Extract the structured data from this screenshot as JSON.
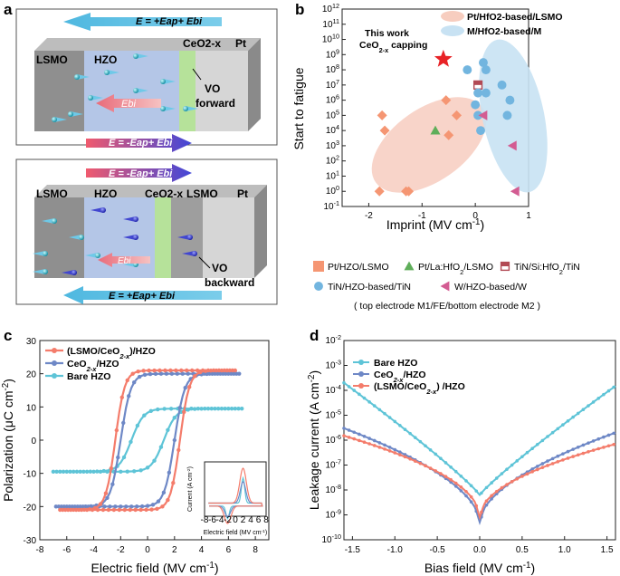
{
  "panels": {
    "a": {
      "letter": "a",
      "top": {
        "eq_top": "E = +Eap+ Ebi",
        "eq_bottom": "E = -Eap+ Ebi",
        "layer_lsmo": "LSMO",
        "layer_hzo": "HZO",
        "layer_ceo": "CeO2-x",
        "layer_pt": "Pt",
        "ebi": "Ebi",
        "vo": "VO",
        "vo_dir": "forward"
      },
      "bottom": {
        "eq_top": "E = -Eap+ Ebi",
        "eq_bottom": "E = +Eap+ Ebi",
        "layer_lsmo": "LSMO",
        "layer_hzo": "HZO",
        "layer_ceo": "CeO2-x",
        "layer_lsmo2": "LSMO",
        "layer_pt": "Pt",
        "ebi": "Ebi",
        "vo": "VO",
        "vo_dir": "backward"
      }
    },
    "b": {
      "letter": "b"
    },
    "c": {
      "letter": "c"
    },
    "d": {
      "letter": "d"
    }
  },
  "chart_data": [
    {
      "id": "b",
      "type": "scatter",
      "xlabel": "Imprint (MV cm-1)",
      "ylabel": "Start to fatigue",
      "log_y": true,
      "xlim": [
        -2.5,
        1.0
      ],
      "ylim": [
        0.1,
        1000000000000.0
      ],
      "x_ticks": [
        "-2",
        "-1",
        "0",
        "1"
      ],
      "y_ticks": [
        "10^-1",
        "10^0",
        "10^1",
        "10^2",
        "10^3",
        "10^4",
        "10^5",
        "10^6",
        "10^7",
        "10^8",
        "10^9",
        "10^10",
        "10^11",
        "10^12"
      ],
      "annotation": "This work\nCeO2-x capping",
      "ellipse_legend": [
        "Pt/HfO2-based/LSMO",
        "M/HfO2-based/M"
      ],
      "series": [
        {
          "name": "Pt/HZO/LSMO",
          "marker": "diamond",
          "color": "#f59673",
          "points": [
            [
              -1.8,
              1
            ],
            [
              -1.3,
              1
            ],
            [
              -1.25,
              1
            ],
            [
              -1.75,
              100000.0
            ],
            [
              -1.7,
              10000.0
            ],
            [
              -0.55,
              1000000.0
            ],
            [
              -0.35,
              100000.0
            ],
            [
              -0.5,
              5000.0
            ]
          ]
        },
        {
          "name": "Pt/La:HfO2/LSMO",
          "marker": "triangle-up",
          "color": "#5fae5a",
          "points": [
            [
              -0.75,
              10000.0
            ]
          ]
        },
        {
          "name": "TiN/Si:HfO2/TiN",
          "marker": "square-half",
          "color": "#b24a55",
          "points": [
            [
              0.05,
              10000000.0
            ]
          ]
        },
        {
          "name": "TiN/HZO-based/TiN",
          "marker": "circle",
          "color": "#72b5df",
          "points": [
            [
              -0.15,
              100000000.0
            ],
            [
              0.15,
              300000000.0
            ],
            [
              0.2,
              100000000.0
            ],
            [
              0.05,
              3000000.0
            ],
            [
              0.2,
              3000000.0
            ],
            [
              0.05,
              100000.0
            ],
            [
              0.1,
              10000.0
            ],
            [
              0.5,
              10000000.0
            ],
            [
              0.65,
              1000000.0
            ],
            [
              0.6,
              100000.0
            ],
            [
              0,
              500000.0
            ]
          ]
        },
        {
          "name": "W/HZO-based/W",
          "marker": "triangle-left",
          "color": "#d35c92",
          "points": [
            [
              0.15,
              100000.0
            ],
            [
              0.7,
              1000.0
            ],
            [
              0.75,
              1
            ]
          ]
        },
        {
          "name": "This work",
          "marker": "star",
          "color": "#e82226",
          "points": [
            [
              -0.6,
              500000000.0
            ]
          ]
        }
      ],
      "legend_note": "( top electrode M1/FE/bottom electrode M2 )"
    },
    {
      "id": "c",
      "type": "line",
      "xlabel": "Electric field (MV cm-1)",
      "ylabel": "Polarization (μC cm-2)",
      "xlim": [
        -8,
        9
      ],
      "ylim": [
        -30,
        30
      ],
      "x_ticks": [
        "-8",
        "-6",
        "-4",
        "-2",
        "0",
        "2",
        "4",
        "6",
        "8"
      ],
      "y_ticks": [
        "-30",
        "-20",
        "-10",
        "0",
        "10",
        "20",
        "30"
      ],
      "series": [
        {
          "name": "(LSMO/CeO2-x)/HZO",
          "color": "#f47c6b"
        },
        {
          "name": "CeO2-x/HZO",
          "color": "#6e88c6"
        },
        {
          "name": "Bare HZO",
          "color": "#5ec4d7"
        }
      ],
      "inset": {
        "xlabel": "Electric field (MV cm-1)",
        "ylabel": "Current (A cm-2)",
        "x_ticks": [
          "-8",
          "-6",
          "-4",
          "-2",
          "0",
          "2",
          "4",
          "6",
          "8"
        ],
        "y_ticks": [
          "-1x10^-3",
          "0",
          "1x10^-3",
          "2x10^-3",
          "3x10^-3",
          "4x10^-3"
        ]
      }
    },
    {
      "id": "d",
      "type": "line",
      "xlabel": "Bias field (MV cm-1)",
      "ylabel": "Leakage current (A cm-2)",
      "log_y": true,
      "xlim": [
        -1.6,
        1.6
      ],
      "ylim": [
        1e-10,
        0.01
      ],
      "x_ticks": [
        "-1.5",
        "-1.0",
        "-0.5",
        "0.0",
        "0.5",
        "1.0",
        "1.5"
      ],
      "y_ticks": [
        "10^-10",
        "10^-9",
        "10^-8",
        "10^-7",
        "10^-6",
        "10^-5",
        "10^-4",
        "10^-3",
        "10^-2"
      ],
      "series": [
        {
          "name": "Bare HZO",
          "color": "#5ec4d7"
        },
        {
          "name": "CeO2-x/HZO",
          "color": "#6e88c6"
        },
        {
          "name": "(LSMO/CeO2-x) /HZO",
          "color": "#f47c6b"
        }
      ]
    }
  ]
}
